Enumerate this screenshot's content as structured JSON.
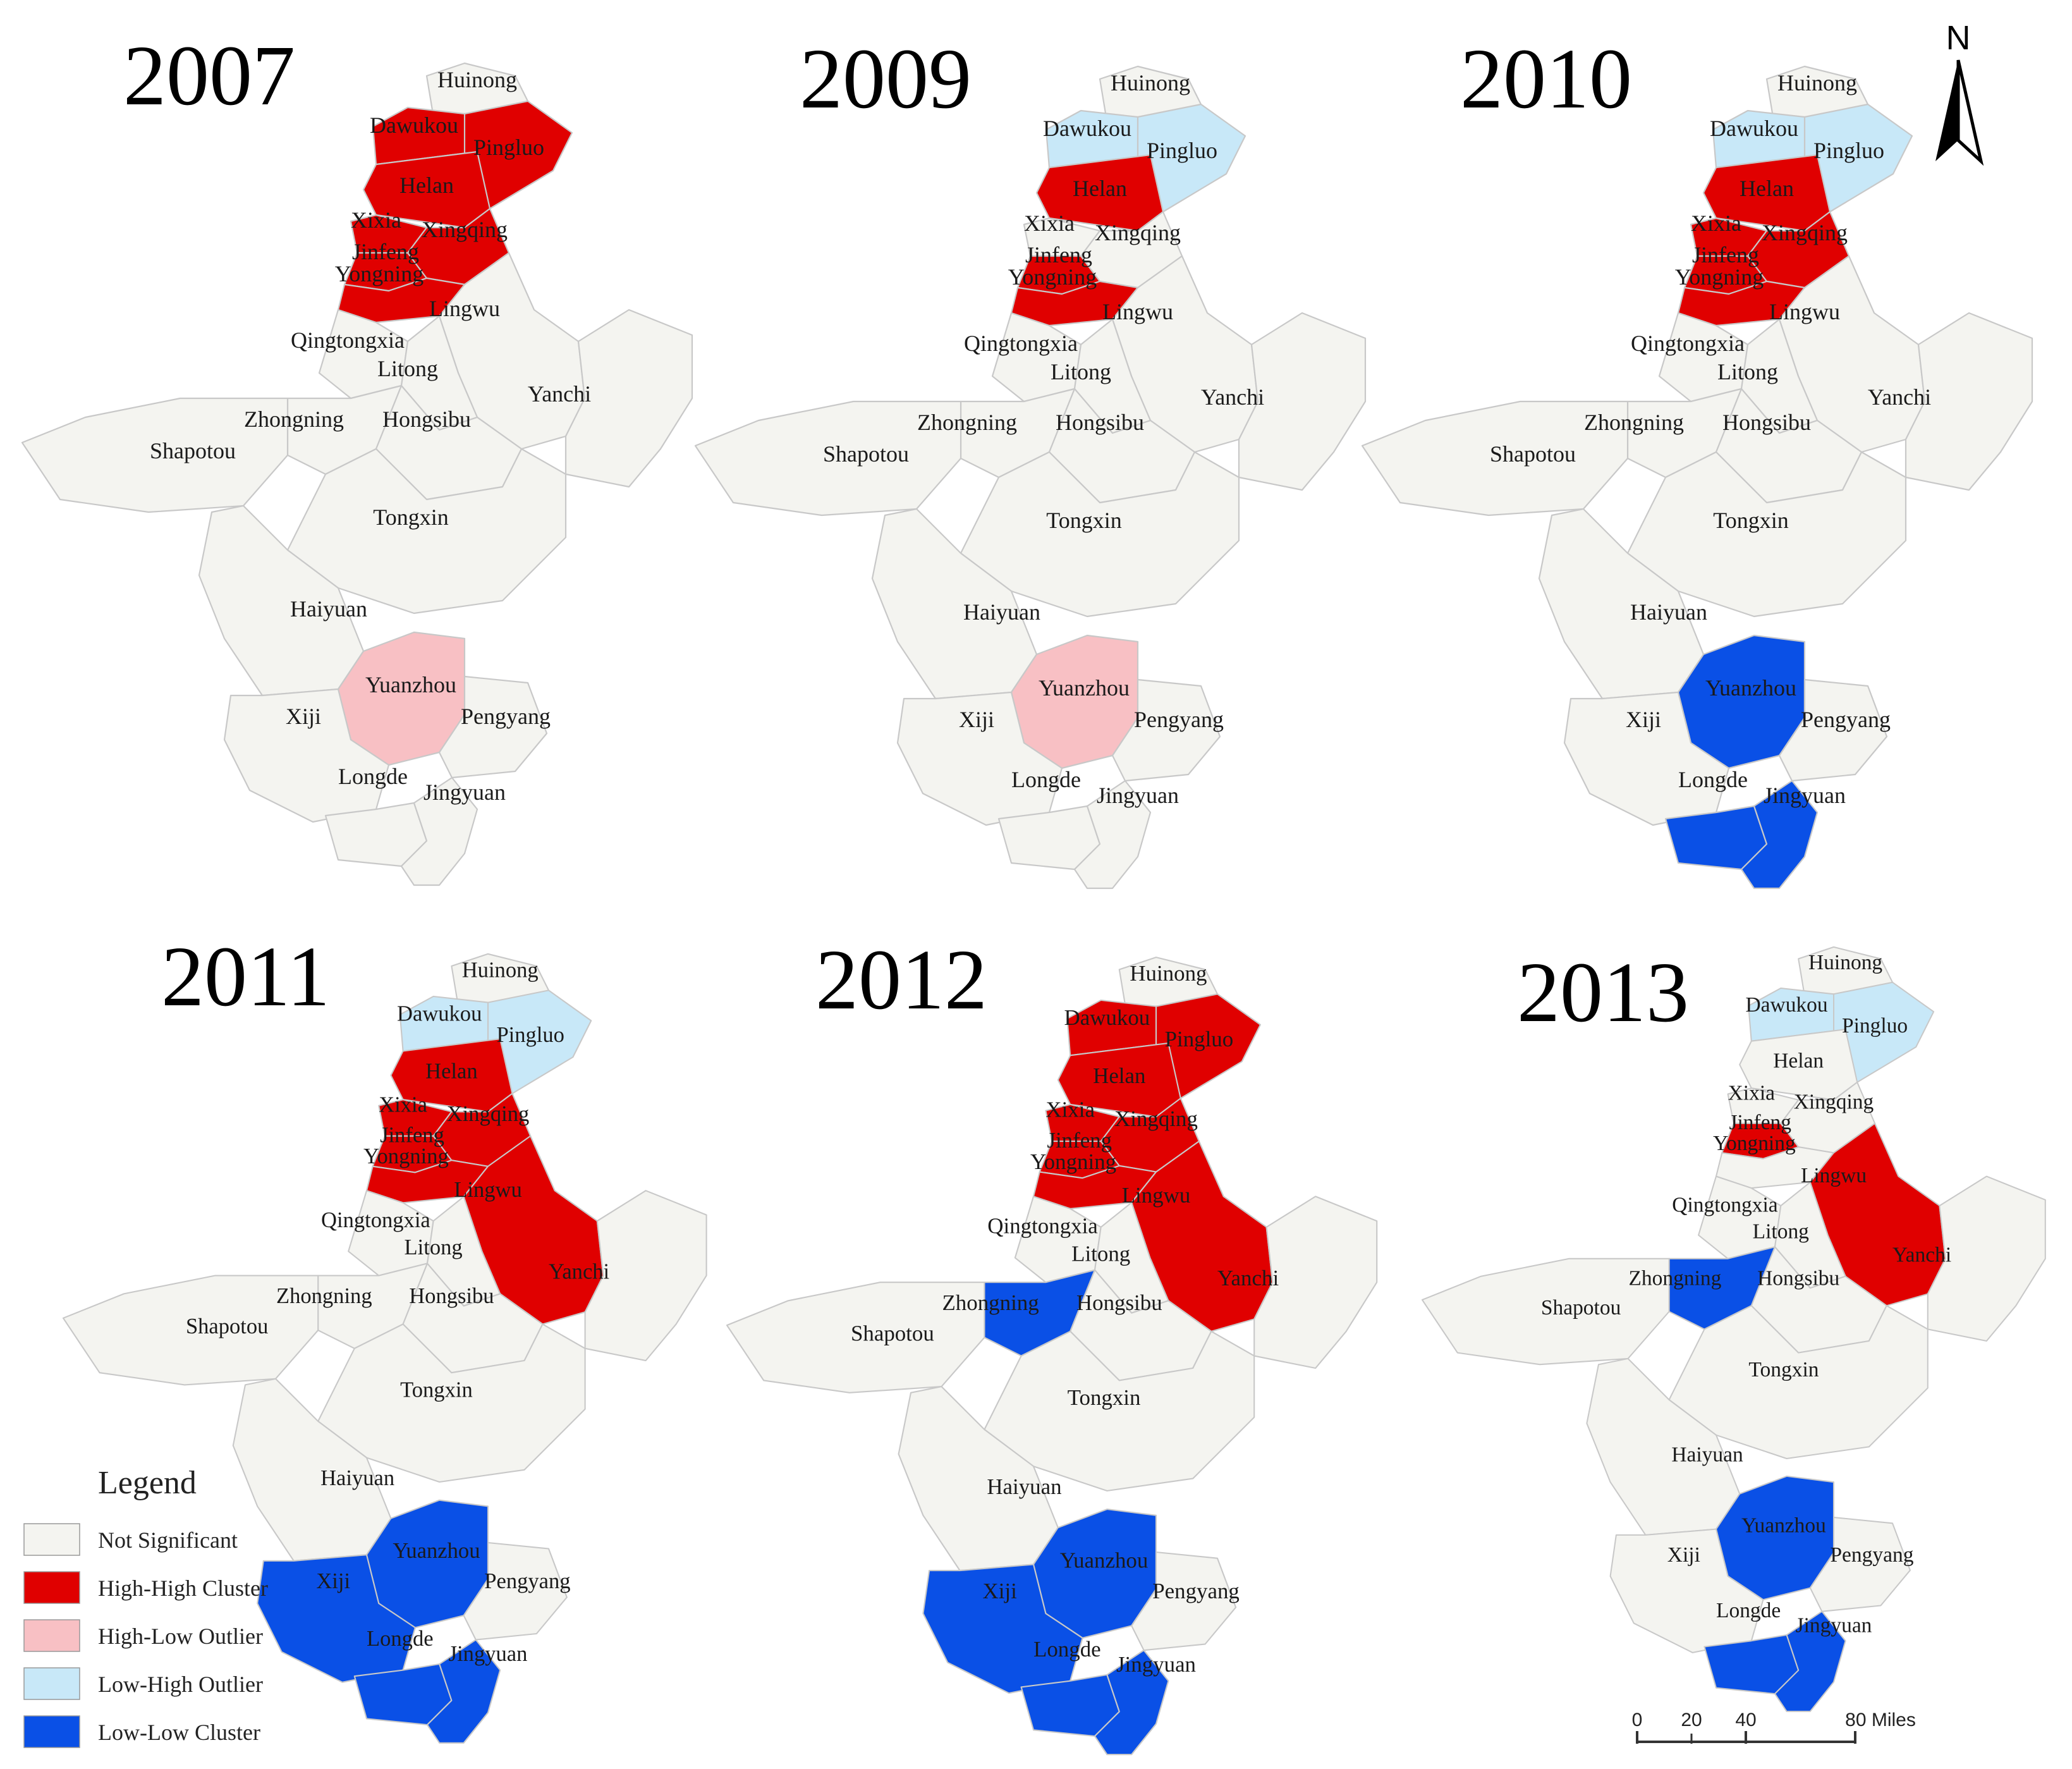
{
  "colors": {
    "not_significant": "#f4f4f0",
    "high_high": "#e00000",
    "high_low": "#f8c0c4",
    "low_high": "#c8e8f8",
    "low_low": "#0a50e6",
    "border": "#c8c8c8"
  },
  "panels": [
    {
      "year": "2007",
      "clusters": {
        "Dawukou": "high_high",
        "Pingluo": "high_high",
        "Helan": "high_high",
        "Xixia": "high_high",
        "Jinfeng": "high_high",
        "Xingqing": "high_high",
        "Yongning": "high_high",
        "Yuanzhou": "high_low"
      }
    },
    {
      "year": "2009",
      "clusters": {
        "Dawukou": "low_high",
        "Pingluo": "low_high",
        "Helan": "high_high",
        "Jinfeng": "high_high",
        "Yongning": "high_high",
        "Yuanzhou": "high_low"
      }
    },
    {
      "year": "2010",
      "clusters": {
        "Dawukou": "low_high",
        "Pingluo": "low_high",
        "Helan": "high_high",
        "Xixia": "high_high",
        "Jinfeng": "high_high",
        "Xingqing": "high_high",
        "Yongning": "high_high",
        "Yuanzhou": "low_low",
        "Longde": "low_low",
        "Jingyuan": "low_low"
      }
    },
    {
      "year": "2011",
      "clusters": {
        "Dawukou": "low_high",
        "Pingluo": "low_high",
        "Helan": "high_high",
        "Xixia": "high_high",
        "Jinfeng": "high_high",
        "Xingqing": "high_high",
        "Yongning": "high_high",
        "Lingwu": "high_high",
        "Xiji": "low_low",
        "Yuanzhou": "low_low",
        "Longde": "low_low",
        "Jingyuan": "low_low"
      }
    },
    {
      "year": "2012",
      "clusters": {
        "Dawukou": "high_high",
        "Pingluo": "high_high",
        "Helan": "high_high",
        "Xixia": "high_high",
        "Jinfeng": "high_high",
        "Xingqing": "high_high",
        "Yongning": "high_high",
        "Lingwu": "high_high",
        "Zhongning": "low_low",
        "Xiji": "low_low",
        "Yuanzhou": "low_low",
        "Longde": "low_low",
        "Jingyuan": "low_low"
      }
    },
    {
      "year": "2013",
      "clusters": {
        "Dawukou": "low_high",
        "Pingluo": "low_high",
        "Jinfeng": "high_high",
        "Lingwu": "high_high",
        "Zhongning": "low_low",
        "Yuanzhou": "low_low",
        "Longde": "low_low",
        "Jingyuan": "low_low"
      }
    }
  ],
  "counties": [
    "Huinong",
    "Dawukou",
    "Pingluo",
    "Helan",
    "Xixia",
    "Jinfeng",
    "Xingqing",
    "Yongning",
    "Lingwu",
    "Qingtongxia",
    "Litong",
    "Yanchi",
    "Zhongning",
    "Hongsibu",
    "Shapotou",
    "Tongxin",
    "Haiyuan",
    "Yuanzhou",
    "Xiji",
    "Pengyang",
    "Longde",
    "Jingyuan"
  ],
  "legend": {
    "title": "Legend",
    "items": [
      {
        "key": "not_significant",
        "label": "Not Significant"
      },
      {
        "key": "high_high",
        "label": "High-High Cluster"
      },
      {
        "key": "high_low",
        "label": "High-Low Outlier"
      },
      {
        "key": "low_high",
        "label": "Low-High Outlier"
      },
      {
        "key": "low_low",
        "label": "Low-Low Cluster"
      }
    ]
  },
  "north_arrow": {
    "label": "N"
  },
  "scale_bar": {
    "ticks": [
      "0",
      "20",
      "40",
      "80 Miles"
    ]
  }
}
